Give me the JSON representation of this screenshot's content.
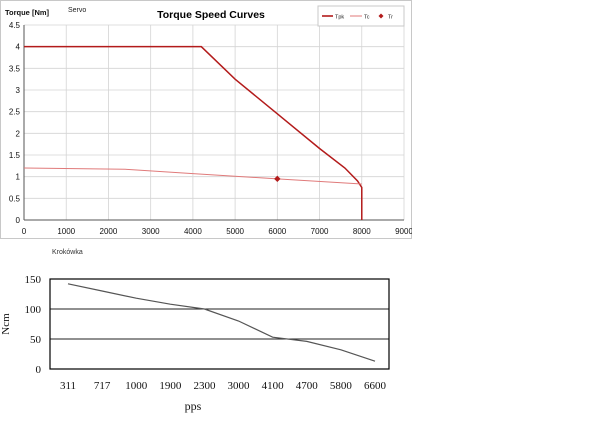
{
  "charts": {
    "servo": {
      "label": "Servo"
    },
    "krokowka": {
      "label": "Krokówka"
    }
  },
  "chart_data": [
    {
      "type": "line",
      "title": "Torque Speed Curves",
      "ylabel": "Torque [Nm]",
      "xlabel": "",
      "xlim": [
        0,
        9000
      ],
      "ylim": [
        0,
        4.5
      ],
      "x_ticks": [
        0,
        1000,
        2000,
        3000,
        4000,
        5000,
        6000,
        7000,
        8000,
        9000
      ],
      "y_ticks": [
        0,
        0.5,
        1,
        1.5,
        2,
        2.5,
        3,
        3.5,
        4,
        4.5
      ],
      "grid": true,
      "legend_position": "top-right",
      "colors": {
        "Tpk": "#b31b1b",
        "Tc": "#e07a7a",
        "Tr": "#b31b1b"
      },
      "series": [
        {
          "name": "Tpk",
          "x": [
            0,
            4200,
            5000,
            6000,
            7000,
            7600,
            7900,
            8000,
            8000
          ],
          "y": [
            4.0,
            4.0,
            3.25,
            2.45,
            1.65,
            1.2,
            0.9,
            0.75,
            0
          ]
        },
        {
          "name": "Tc",
          "x": [
            0,
            2400,
            4000,
            6000,
            8000
          ],
          "y": [
            1.2,
            1.17,
            1.07,
            0.95,
            0.83
          ]
        },
        {
          "name": "Tr",
          "x": [
            6000
          ],
          "y": [
            0.95
          ]
        }
      ]
    },
    {
      "type": "line",
      "title": "",
      "ylabel": "Ncm",
      "xlabel": "pps",
      "categories": [
        "311",
        "717",
        "1000",
        "1900",
        "2300",
        "3000",
        "4100",
        "4700",
        "5800",
        "6600"
      ],
      "ylim": [
        0,
        150
      ],
      "y_ticks": [
        0,
        50,
        100,
        150
      ],
      "grid": true,
      "series": [
        {
          "values": [
            142,
            130,
            118,
            108,
            100,
            80,
            53,
            46,
            32,
            13
          ]
        }
      ]
    }
  ]
}
